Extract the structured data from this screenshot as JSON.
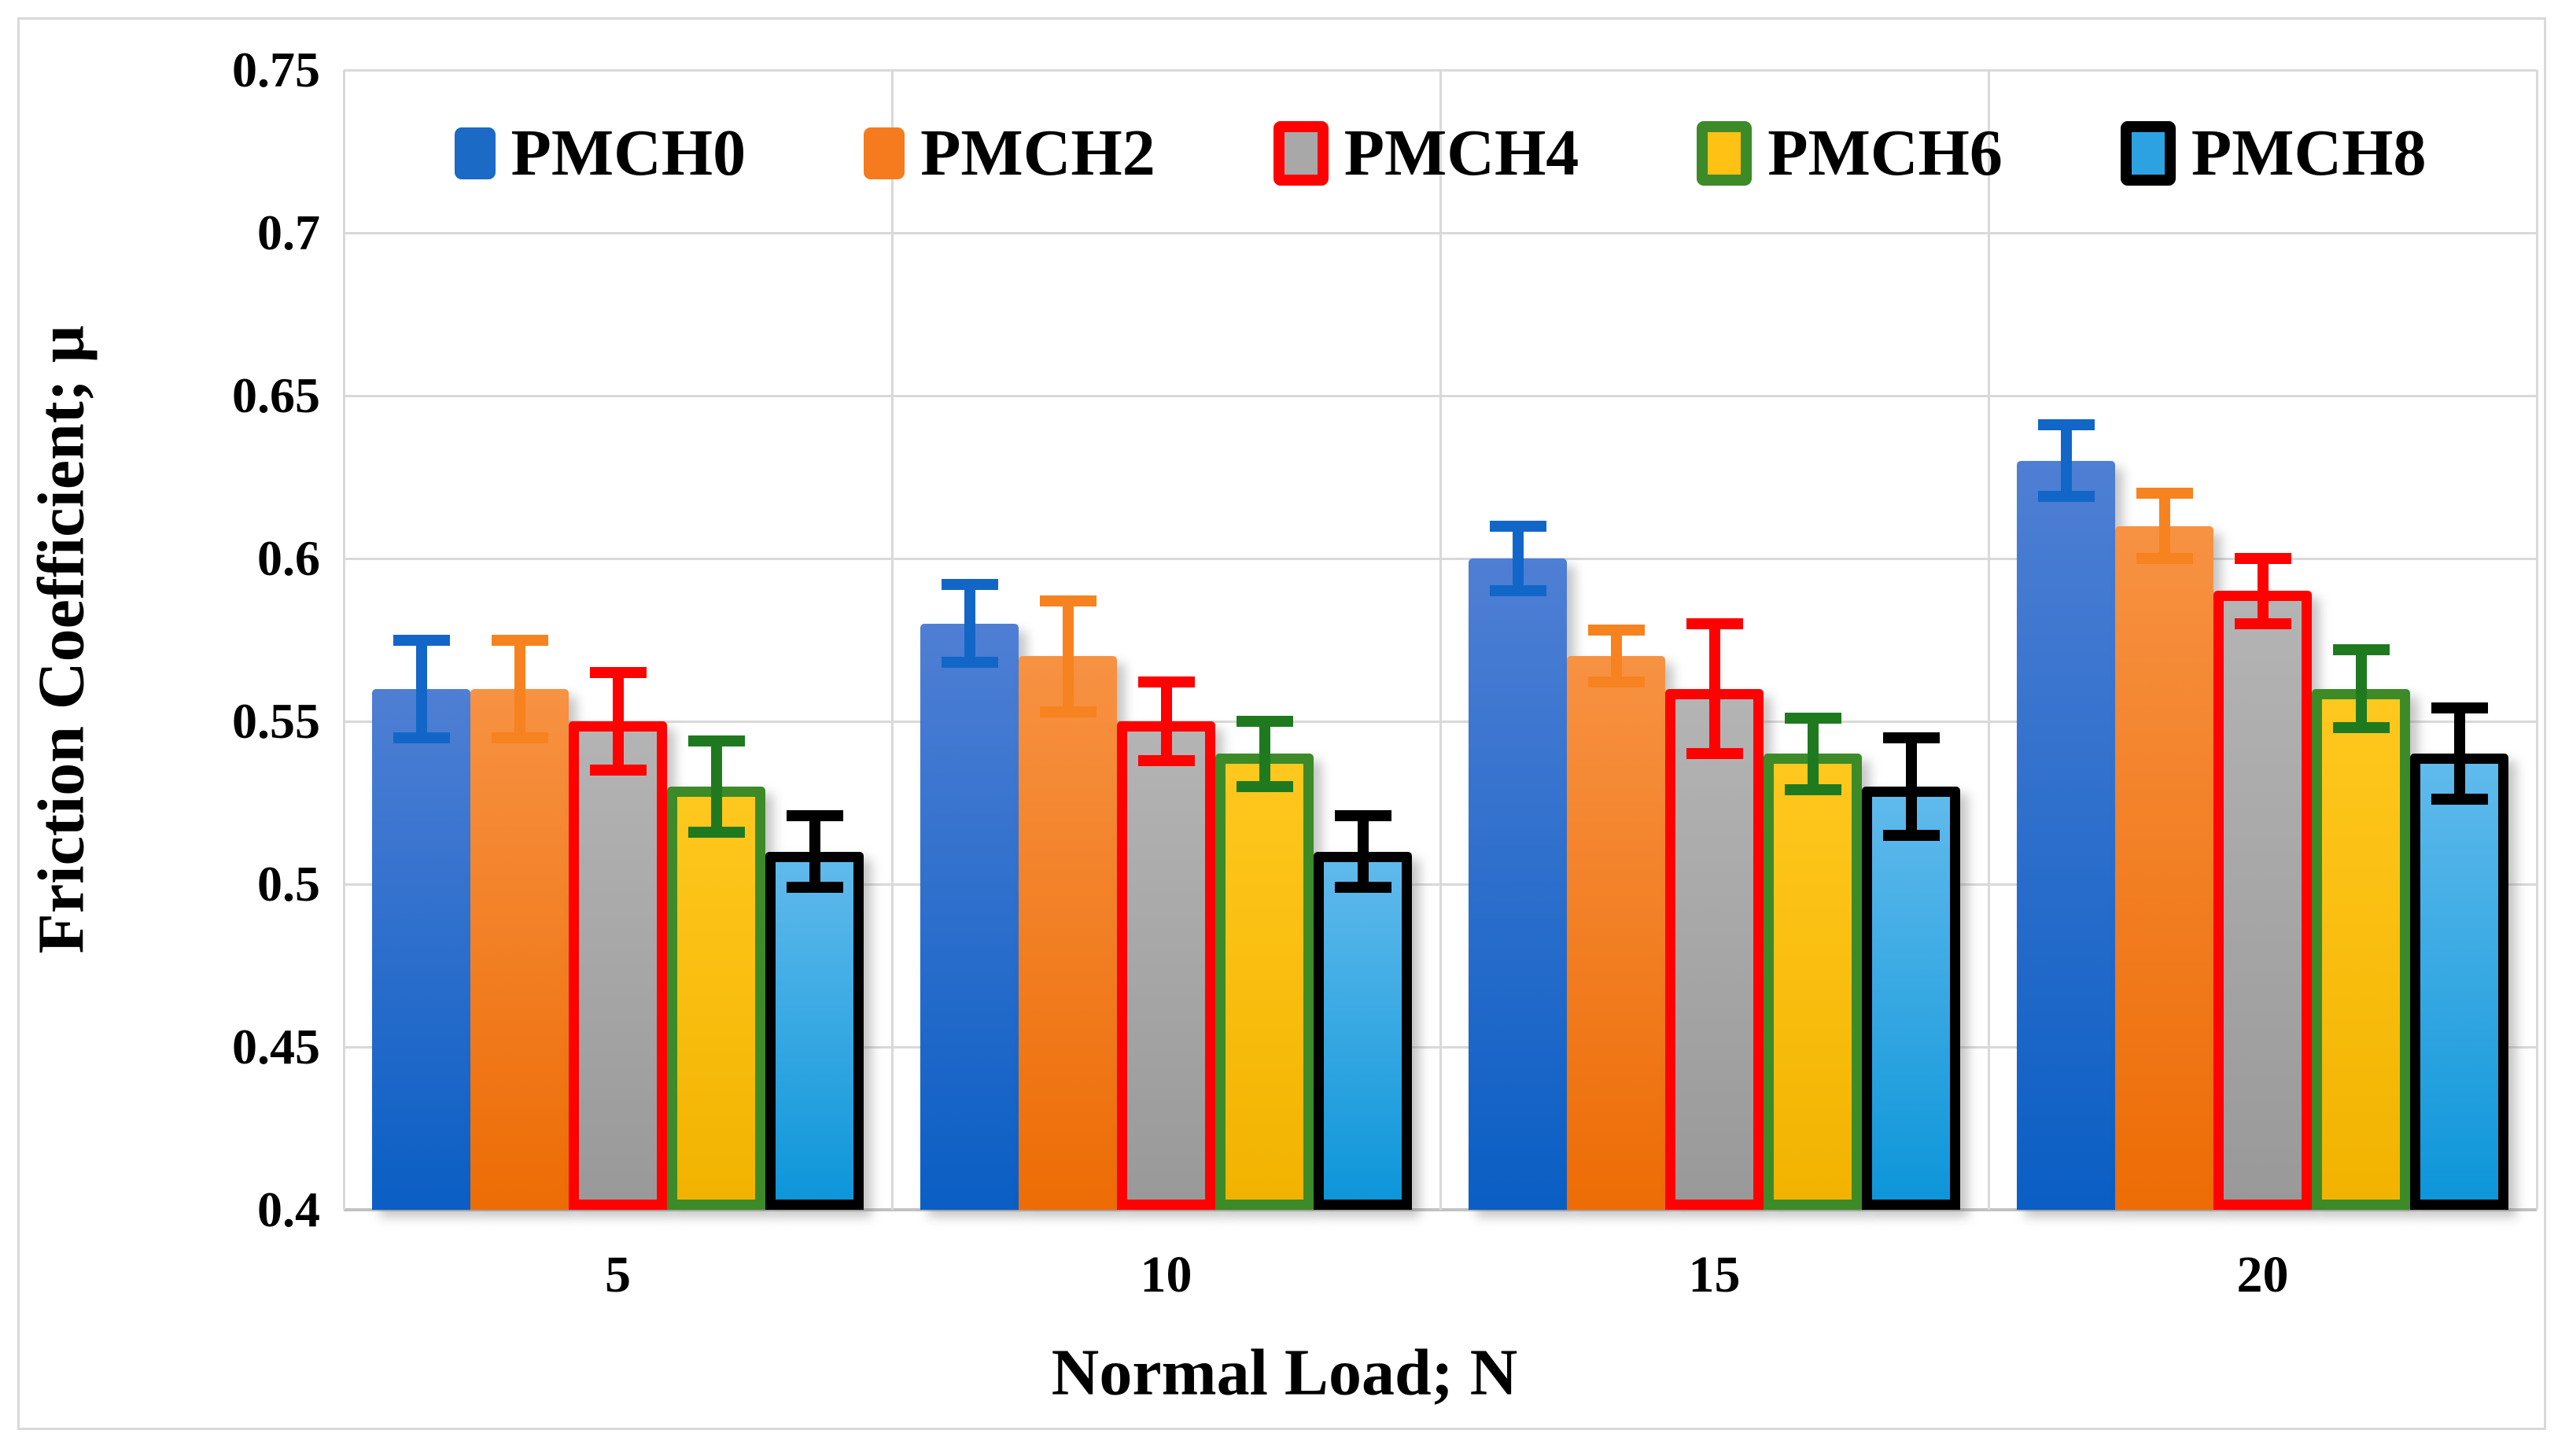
{
  "figure": {
    "background": "#ffffff",
    "frame_color": "#d9d9d9",
    "gridline_color": "#d9d9d9",
    "axis_line_color": "#c2c2c2",
    "text_color": "#000000"
  },
  "chart_data": {
    "type": "bar",
    "title": "",
    "xlabel": "Normal Load; N",
    "ylabel": "Friction Coefficient; μ",
    "categories": [
      "5",
      "10",
      "15",
      "20"
    ],
    "y_ticks": [
      "0.75",
      "0.7",
      "0.65",
      "0.6",
      "0.55",
      "0.5",
      "0.45",
      "0.4"
    ],
    "ylim": [
      0.4,
      0.75
    ],
    "grid": "horizontal gridlines at 0.05 steps; vertical gridlines at category boundaries",
    "legend_position": "top-center-inside",
    "error_bars": "symmetric, with caps, colored per series",
    "series": [
      {
        "name": "PMCH0",
        "values": [
          0.56,
          0.58,
          0.6,
          0.63
        ],
        "errors": [
          0.015,
          0.012,
          0.01,
          0.011
        ],
        "fill_top": "#4f7fd4",
        "fill_bottom": "#0a5ec4",
        "border_color": "",
        "error_color": "#1266c8",
        "legend_fill": "#1a6ac6"
      },
      {
        "name": "PMCH2",
        "values": [
          0.56,
          0.57,
          0.57,
          0.61
        ],
        "errors": [
          0.015,
          0.017,
          0.008,
          0.01
        ],
        "fill_top": "#f79243",
        "fill_bottom": "#ed6c05",
        "border_color": "",
        "error_color": "#f6831f",
        "legend_fill": "#f57b1e"
      },
      {
        "name": "PMCH4",
        "values": [
          0.55,
          0.55,
          0.56,
          0.59
        ],
        "errors": [
          0.015,
          0.012,
          0.02,
          0.01
        ],
        "fill_top": "#b4b4b4",
        "fill_bottom": "#999999",
        "border_color": "#fe0101",
        "error_color": "#fe0101",
        "legend_fill": "#a8a8a8"
      },
      {
        "name": "PMCH6",
        "values": [
          0.53,
          0.54,
          0.54,
          0.56
        ],
        "errors": [
          0.014,
          0.01,
          0.011,
          0.012
        ],
        "fill_top": "#ffc81e",
        "fill_bottom": "#f2b300",
        "border_color": "#3c8b28",
        "error_color": "#1f7a1f",
        "legend_fill": "#ffc113"
      },
      {
        "name": "PMCH8",
        "values": [
          0.51,
          0.51,
          0.53,
          0.54
        ],
        "errors": [
          0.011,
          0.011,
          0.015,
          0.014
        ],
        "fill_top": "#60baec",
        "fill_bottom": "#0d96d9",
        "border_color": "#000000",
        "error_color": "#000000",
        "legend_fill": "#2da2e2"
      }
    ]
  }
}
